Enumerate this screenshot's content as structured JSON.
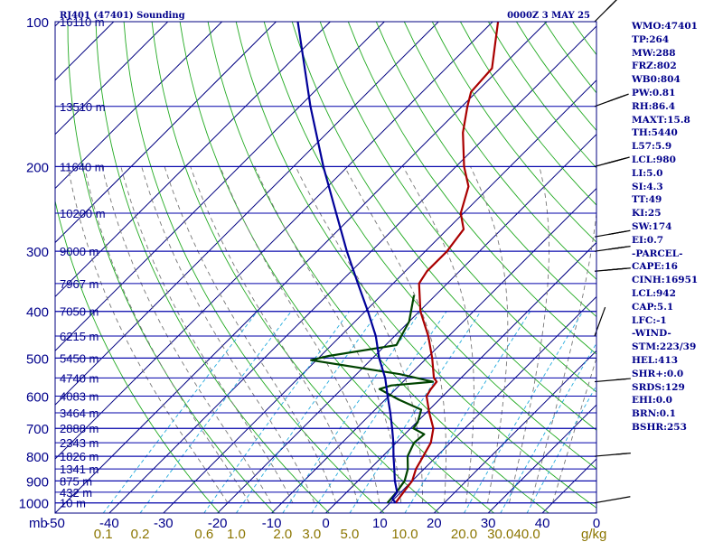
{
  "chart_data": {
    "type": "skew-t",
    "title": "RJ401 (47401) Sounding",
    "datetime": "0000Z  3 MAY 25",
    "pressure_ticks": [
      {
        "p": 100,
        "label": "100"
      },
      {
        "p": 200,
        "label": "200"
      },
      {
        "p": 300,
        "label": "300"
      },
      {
        "p": 400,
        "label": "400"
      },
      {
        "p": 500,
        "label": "500"
      },
      {
        "p": 600,
        "label": "600"
      },
      {
        "p": 700,
        "label": "700"
      },
      {
        "p": 800,
        "label": "800"
      },
      {
        "p": 900,
        "label": "900"
      },
      {
        "p": 1000,
        "label": "1000"
      }
    ],
    "pressure_unit": "mb",
    "pressure_range": [
      100,
      1050
    ],
    "temp_range_at_bottom": [
      -50,
      50
    ],
    "temp_ticks": [
      -40,
      -30,
      -20,
      -10,
      0,
      10,
      20,
      30,
      40
    ],
    "temp_tick_labels": [
      "-50",
      "-40",
      "-30",
      "-20",
      "-10",
      "0",
      "10",
      "20",
      "30",
      "40",
      "0"
    ],
    "mixing_ratio_labels": [
      "0.1",
      "0.2",
      "0.6",
      "1.0",
      "2.0",
      "3.0",
      "5.0",
      "10.0",
      "20.0",
      "30.0",
      "40.0"
    ],
    "mixing_ratio_unit": "g/kg",
    "height_levels": [
      {
        "p": 100,
        "label": "16110 m"
      },
      {
        "p": 150,
        "label": "13510 m"
      },
      {
        "p": 200,
        "label": "11640 m"
      },
      {
        "p": 250,
        "label": "10200 m"
      },
      {
        "p": 300,
        "label": "9000 m"
      },
      {
        "p": 350,
        "label": "7967 m"
      },
      {
        "p": 400,
        "label": "7050 m"
      },
      {
        "p": 450,
        "label": "6215 m"
      },
      {
        "p": 500,
        "label": "5450 m"
      },
      {
        "p": 550,
        "label": "4740 m"
      },
      {
        "p": 600,
        "label": "4083 m"
      },
      {
        "p": 650,
        "label": "3464 m"
      },
      {
        "p": 700,
        "label": "2888 m"
      },
      {
        "p": 750,
        "label": "2343 m"
      },
      {
        "p": 800,
        "label": "1826 m"
      },
      {
        "p": 850,
        "label": "1341 m"
      },
      {
        "p": 900,
        "label": "875 m"
      },
      {
        "p": 950,
        "label": "432 m"
      },
      {
        "p": 1000,
        "label": "10 m"
      }
    ],
    "series": [
      {
        "name": "temperature",
        "color": "#aa0000",
        "points": [
          {
            "p": 1000,
            "t": 11.0
          },
          {
            "p": 950,
            "t": 10.5
          },
          {
            "p": 900,
            "t": 10.0
          },
          {
            "p": 850,
            "t": 8.5
          },
          {
            "p": 800,
            "t": 7.5
          },
          {
            "p": 750,
            "t": 6.4
          },
          {
            "p": 700,
            "t": 4.2
          },
          {
            "p": 650,
            "t": 0.6
          },
          {
            "p": 600,
            "t": -3.0
          },
          {
            "p": 580,
            "t": -3.5
          },
          {
            "p": 560,
            "t": -3.8
          },
          {
            "p": 550,
            "t": -5.0
          },
          {
            "p": 500,
            "t": -9.0
          },
          {
            "p": 450,
            "t": -13.8
          },
          {
            "p": 400,
            "t": -19.8
          },
          {
            "p": 350,
            "t": -25.2
          },
          {
            "p": 330,
            "t": -26.0
          },
          {
            "p": 300,
            "t": -26.0
          },
          {
            "p": 270,
            "t": -27.0
          },
          {
            "p": 250,
            "t": -30.5
          },
          {
            "p": 220,
            "t": -34.0
          },
          {
            "p": 200,
            "t": -38.5
          },
          {
            "p": 170,
            "t": -45.0
          },
          {
            "p": 150,
            "t": -49.0
          },
          {
            "p": 140,
            "t": -51.0
          },
          {
            "p": 125,
            "t": -51.5
          },
          {
            "p": 110,
            "t": -55.8
          },
          {
            "p": 100,
            "t": -59.0
          }
        ]
      },
      {
        "name": "dewpoint",
        "color": "#004400",
        "points": [
          {
            "p": 1000,
            "t": 9.5
          },
          {
            "p": 950,
            "t": 9.2
          },
          {
            "p": 900,
            "t": 8.6
          },
          {
            "p": 850,
            "t": 7.0
          },
          {
            "p": 800,
            "t": 4.6
          },
          {
            "p": 750,
            "t": 3.3
          },
          {
            "p": 720,
            "t": 3.6
          },
          {
            "p": 700,
            "t": 0.5
          },
          {
            "p": 680,
            "t": 0.2
          },
          {
            "p": 640,
            "t": -1.5
          },
          {
            "p": 610,
            "t": -7.5
          },
          {
            "p": 580,
            "t": -13.0
          },
          {
            "p": 570,
            "t": -11.5
          },
          {
            "p": 560,
            "t": -4.5
          },
          {
            "p": 540,
            "t": -12.0
          },
          {
            "p": 505,
            "t": -31.0
          },
          {
            "p": 495,
            "t": -28.5
          },
          {
            "p": 470,
            "t": -18.0
          },
          {
            "p": 420,
            "t": -20.0
          },
          {
            "p": 370,
            "t": -24.0
          }
        ]
      },
      {
        "name": "parcel",
        "color": "#000099",
        "points": [
          {
            "p": 1000,
            "t": 11.0
          },
          {
            "p": 980,
            "t": 9.6
          },
          {
            "p": 950,
            "t": 9.3
          },
          {
            "p": 900,
            "t": 6.8
          },
          {
            "p": 850,
            "t": 4.5
          },
          {
            "p": 800,
            "t": 2.0
          },
          {
            "p": 750,
            "t": -0.5
          },
          {
            "p": 700,
            "t": -3.4
          },
          {
            "p": 650,
            "t": -6.6
          },
          {
            "p": 600,
            "t": -10.2
          },
          {
            "p": 550,
            "t": -14.0
          },
          {
            "p": 500,
            "t": -18.8
          },
          {
            "p": 450,
            "t": -23.5
          },
          {
            "p": 400,
            "t": -29.5
          },
          {
            "p": 350,
            "t": -36.5
          },
          {
            "p": 300,
            "t": -44.5
          },
          {
            "p": 250,
            "t": -53.5
          },
          {
            "p": 200,
            "t": -64.5
          },
          {
            "p": 150,
            "t": -78.0
          },
          {
            "p": 100,
            "t": -96.0
          }
        ]
      }
    ],
    "wind_barbs": [
      {
        "p": 100,
        "dir": 225,
        "spd": 25
      },
      {
        "p": 150,
        "dir": 250,
        "spd": 35
      },
      {
        "p": 200,
        "dir": 255,
        "spd": 50
      },
      {
        "p": 280,
        "dir": 260,
        "spd": 35
      },
      {
        "p": 300,
        "dir": 262,
        "spd": 40
      },
      {
        "p": 330,
        "dir": 265,
        "spd": 45
      },
      {
        "p": 450,
        "dir": 200,
        "spd": 5
      },
      {
        "p": 560,
        "dir": 265,
        "spd": 20
      },
      {
        "p": 800,
        "dir": 265,
        "spd": 20
      },
      {
        "p": 1000,
        "dir": 260,
        "spd": 10
      }
    ],
    "grid": true
  },
  "stats": [
    "WMO:47401",
    "TP:264",
    "MW:288",
    "FRZ:802",
    "WB0:804",
    "PW:0.81",
    "RH:86.4",
    "MAXT:15.8",
    "TH:5440",
    "L57:5.9",
    "LCL:980",
    "LI:5.0",
    "SI:4.3",
    "TT:49",
    "KI:25",
    "SW:174",
    "EI:0.7",
    "-PARCEL-",
    "CAPE:16",
    "CINH:16951",
    "LCL:942",
    "CAP:5.1",
    "LFC:-1",
    "-WIND-",
    "STM:223/39",
    "HEL:413",
    "SHR+:0.0",
    "SRDS:129",
    "EHI:0.0",
    "BRN:0.1",
    "BSHR:253"
  ]
}
